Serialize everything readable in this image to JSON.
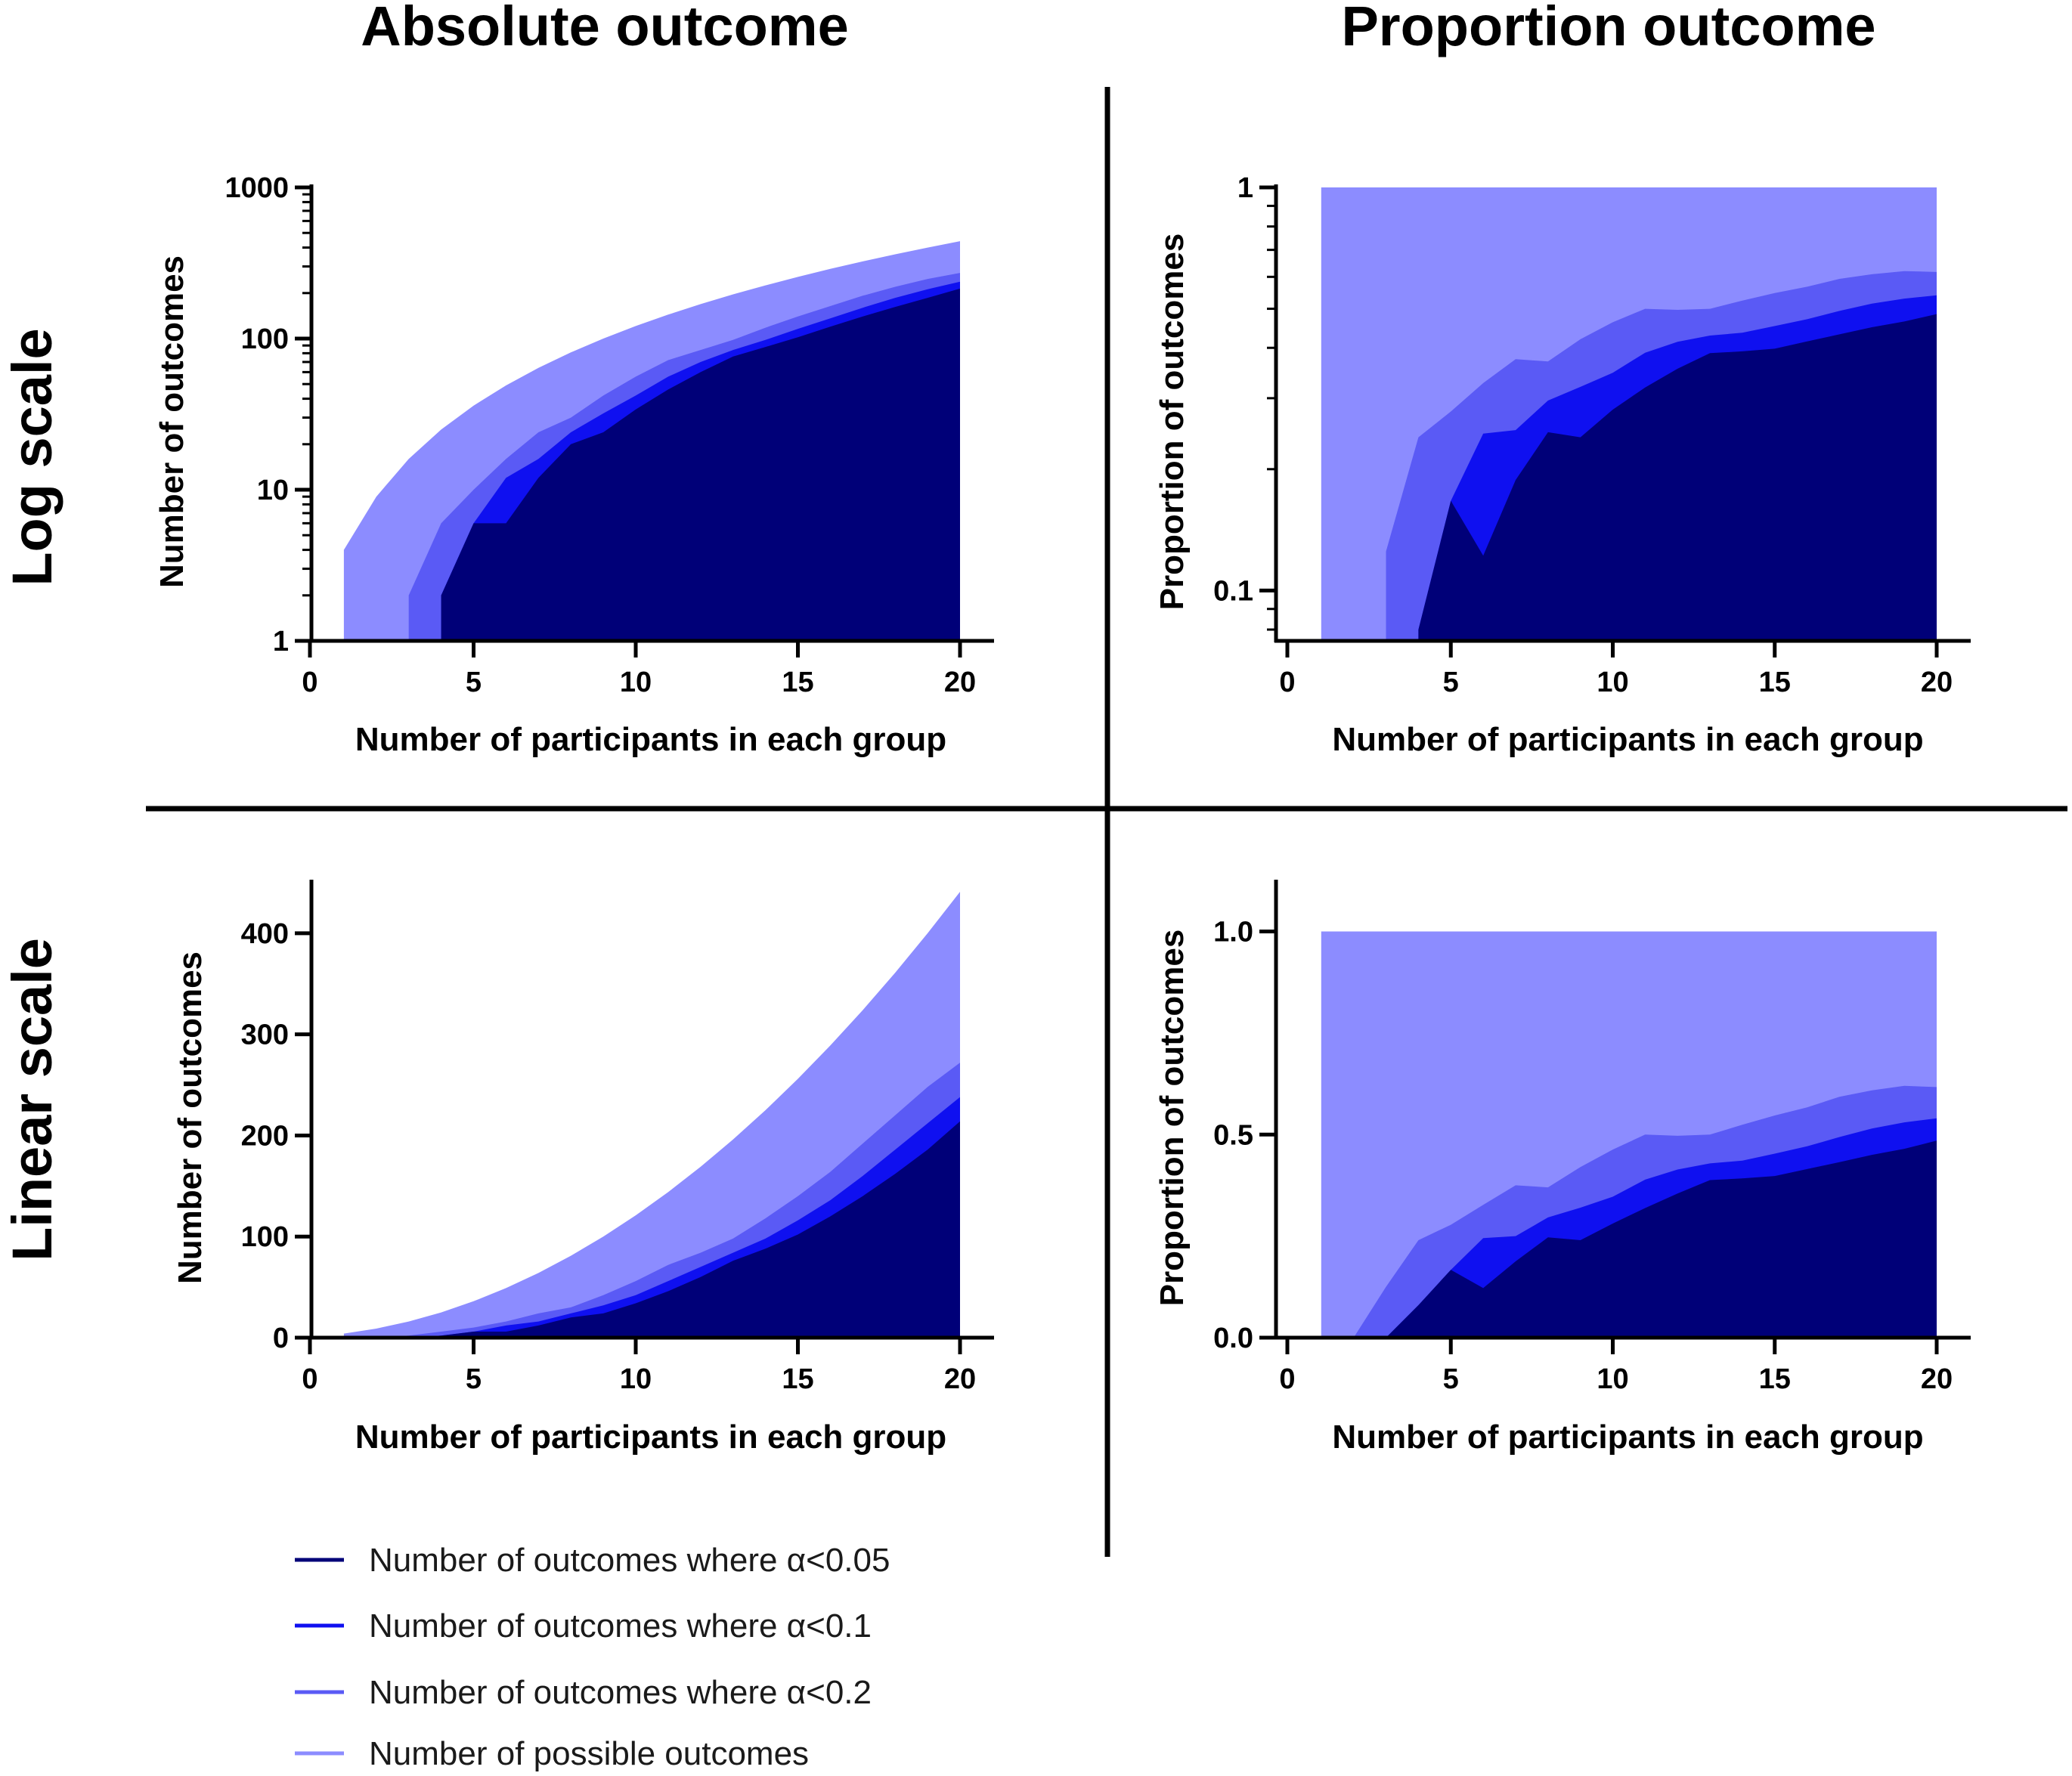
{
  "column_titles": {
    "left": "Absolute outcome",
    "right": "Proportion outcome"
  },
  "row_titles": {
    "top": "Log scale",
    "bottom": "Linear scale"
  },
  "colors": {
    "possible": "#8c8cff",
    "alpha02": "#5a5af5",
    "alpha01": "#0f10f0",
    "alpha005": "#000078",
    "axis": "#000000"
  },
  "legend": [
    {
      "label": "Number of outcomes where α<0.05",
      "color": "#000078"
    },
    {
      "label": "Number of outcomes where α<0.1",
      "color": "#0f10f0"
    },
    {
      "label": "Number of outcomes where α<0.2",
      "color": "#5a5af5"
    },
    {
      "label": "Number of possible outcomes",
      "color": "#8c8cff"
    }
  ],
  "chart_data": [
    {
      "id": "abs-log",
      "type": "area",
      "scale": "log",
      "xlabel": "Number of participants in each group",
      "ylabel": "Number of outcomes",
      "xlim": [
        0,
        20
      ],
      "ylim": [
        1,
        1000
      ],
      "xticks": [
        "0",
        "5",
        "10",
        "15",
        "20"
      ],
      "yticks": [
        {
          "v": 1,
          "t": "1"
        },
        {
          "v": 10,
          "t": "10"
        },
        {
          "v": 100,
          "t": "100"
        },
        {
          "v": 1000,
          "t": "1000"
        }
      ],
      "series": [
        {
          "name": "Number of possible outcomes",
          "x": [
            1,
            2,
            3,
            4,
            5,
            6,
            7,
            8,
            9,
            10,
            11,
            12,
            13,
            14,
            15,
            16,
            17,
            18,
            19,
            20
          ],
          "values": [
            4,
            9,
            16,
            25,
            36,
            49,
            64,
            81,
            100,
            121,
            144,
            169,
            196,
            225,
            256,
            289,
            324,
            361,
            400,
            441
          ]
        },
        {
          "name": "Number of outcomes where α<0.2",
          "x": [
            3,
            4,
            5,
            6,
            7,
            8,
            9,
            10,
            11,
            12,
            13,
            14,
            15,
            16,
            17,
            18,
            19,
            20
          ],
          "values": [
            2,
            6,
            10,
            16,
            24,
            30,
            42,
            56,
            72,
            84,
            98,
            118,
            140,
            164,
            192,
            220,
            248,
            272
          ]
        },
        {
          "name": "Number of outcomes where α<0.1",
          "x": [
            4,
            5,
            6,
            7,
            8,
            9,
            10,
            11,
            12,
            13,
            14,
            15,
            16,
            17,
            18,
            19,
            20
          ],
          "values": [
            2,
            6,
            12,
            16,
            24,
            32,
            42,
            56,
            70,
            84,
            98,
            116,
            136,
            160,
            186,
            212,
            238
          ]
        },
        {
          "name": "Number of outcomes where α<0.05",
          "x": [
            4,
            5,
            6,
            7,
            8,
            9,
            10,
            11,
            12,
            13,
            14,
            15,
            16,
            17,
            18,
            19,
            20
          ],
          "values": [
            2,
            6,
            6,
            12,
            20,
            24,
            34,
            46,
            60,
            76,
            88,
            102,
            120,
            140,
            162,
            186,
            214
          ]
        }
      ]
    },
    {
      "id": "prop-log",
      "type": "area",
      "scale": "log",
      "xlabel": "Number of participants in each group",
      "ylabel": "Proportion of outcomes",
      "xlim": [
        0,
        20
      ],
      "ylim": [
        0.075,
        1
      ],
      "xticks": [
        "0",
        "5",
        "10",
        "15",
        "20"
      ],
      "yticks": [
        {
          "v": 0.1,
          "t": "0.1"
        },
        {
          "v": 1,
          "t": "1"
        }
      ],
      "series": [
        {
          "name": "Number of possible outcomes",
          "x": [
            1,
            20
          ],
          "values": [
            1,
            1
          ]
        },
        {
          "name": "Number of outcomes where α<0.2",
          "x": [
            3,
            4,
            5,
            6,
            7,
            8,
            9,
            10,
            11,
            12,
            13,
            14,
            15,
            16,
            17,
            18,
            19,
            20
          ],
          "values": [
            0.125,
            0.24,
            0.278,
            0.327,
            0.375,
            0.37,
            0.42,
            0.463,
            0.5,
            0.497,
            0.5,
            0.524,
            0.547,
            0.567,
            0.593,
            0.609,
            0.62,
            0.617
          ]
        },
        {
          "name": "Number of outcomes where α<0.1",
          "x": [
            4,
            5,
            6,
            7,
            8,
            9,
            10,
            11,
            12,
            13,
            14,
            15,
            16,
            17,
            18,
            19,
            20
          ],
          "values": [
            0.08,
            0.167,
            0.245,
            0.25,
            0.296,
            0.32,
            0.347,
            0.389,
            0.414,
            0.429,
            0.436,
            0.453,
            0.471,
            0.494,
            0.515,
            0.53,
            0.54
          ]
        },
        {
          "name": "Number of outcomes where α<0.05",
          "x": [
            4,
            5,
            6,
            7,
            8,
            9,
            10,
            11,
            12,
            13,
            14,
            15,
            16,
            17,
            18,
            19,
            20
          ],
          "values": [
            0.08,
            0.167,
            0.122,
            0.188,
            0.247,
            0.24,
            0.281,
            0.319,
            0.355,
            0.388,
            0.392,
            0.398,
            0.415,
            0.432,
            0.45,
            0.465,
            0.485
          ]
        }
      ]
    },
    {
      "id": "abs-lin",
      "type": "area",
      "scale": "linear",
      "xlabel": "Number of participants in each group",
      "ylabel": "Number of outcomes",
      "xlim": [
        0,
        20
      ],
      "ylim": [
        0,
        450
      ],
      "xticks": [
        "0",
        "5",
        "10",
        "15",
        "20"
      ],
      "yticks": [
        {
          "v": 0,
          "t": "0"
        },
        {
          "v": 100,
          "t": "100"
        },
        {
          "v": 200,
          "t": "200"
        },
        {
          "v": 300,
          "t": "300"
        },
        {
          "v": 400,
          "t": "400"
        }
      ],
      "series": [
        {
          "name": "Number of possible outcomes",
          "x": [
            1,
            2,
            3,
            4,
            5,
            6,
            7,
            8,
            9,
            10,
            11,
            12,
            13,
            14,
            15,
            16,
            17,
            18,
            19,
            20
          ],
          "values": [
            4,
            9,
            16,
            25,
            36,
            49,
            64,
            81,
            100,
            121,
            144,
            169,
            196,
            225,
            256,
            289,
            324,
            361,
            400,
            441
          ]
        },
        {
          "name": "Number of outcomes where α<0.2",
          "x": [
            1,
            2,
            3,
            4,
            5,
            6,
            7,
            8,
            9,
            10,
            11,
            12,
            13,
            14,
            15,
            16,
            17,
            18,
            19,
            20
          ],
          "values": [
            0,
            0,
            2,
            6,
            10,
            16,
            24,
            30,
            42,
            56,
            72,
            84,
            98,
            118,
            140,
            164,
            192,
            220,
            248,
            272
          ]
        },
        {
          "name": "Number of outcomes where α<0.1",
          "x": [
            1,
            2,
            3,
            4,
            5,
            6,
            7,
            8,
            9,
            10,
            11,
            12,
            13,
            14,
            15,
            16,
            17,
            18,
            19,
            20
          ],
          "values": [
            0,
            0,
            0,
            2,
            6,
            12,
            16,
            24,
            32,
            42,
            56,
            70,
            84,
            98,
            116,
            136,
            160,
            186,
            212,
            238
          ]
        },
        {
          "name": "Number of outcomes where α<0.05",
          "x": [
            1,
            2,
            3,
            4,
            5,
            6,
            7,
            8,
            9,
            10,
            11,
            12,
            13,
            14,
            15,
            16,
            17,
            18,
            19,
            20
          ],
          "values": [
            0,
            0,
            0,
            2,
            6,
            6,
            12,
            20,
            24,
            34,
            46,
            60,
            76,
            88,
            102,
            120,
            140,
            162,
            186,
            214
          ]
        }
      ]
    },
    {
      "id": "prop-lin",
      "type": "area",
      "scale": "linear",
      "xlabel": "Number of participants in each group",
      "ylabel": "Proportion of outcomes",
      "xlim": [
        0,
        20
      ],
      "ylim": [
        0,
        1.12
      ],
      "xticks": [
        "0",
        "5",
        "10",
        "15",
        "20"
      ],
      "yticks": [
        {
          "v": 0,
          "t": "0.0"
        },
        {
          "v": 0.5,
          "t": "0.5"
        },
        {
          "v": 1,
          "t": "1.0"
        }
      ],
      "series": [
        {
          "name": "Number of possible outcomes",
          "x": [
            1,
            20
          ],
          "values": [
            1,
            1
          ]
        },
        {
          "name": "Number of outcomes where α<0.2",
          "x": [
            1,
            2,
            3,
            4,
            5,
            6,
            7,
            8,
            9,
            10,
            11,
            12,
            13,
            14,
            15,
            16,
            17,
            18,
            19,
            20
          ],
          "values": [
            0,
            0,
            0.125,
            0.24,
            0.278,
            0.327,
            0.375,
            0.37,
            0.42,
            0.463,
            0.5,
            0.497,
            0.5,
            0.524,
            0.547,
            0.567,
            0.593,
            0.609,
            0.62,
            0.617
          ]
        },
        {
          "name": "Number of outcomes where α<0.1",
          "x": [
            1,
            2,
            3,
            4,
            5,
            6,
            7,
            8,
            9,
            10,
            11,
            12,
            13,
            14,
            15,
            16,
            17,
            18,
            19,
            20
          ],
          "values": [
            0,
            0,
            0,
            0.08,
            0.167,
            0.245,
            0.25,
            0.296,
            0.32,
            0.347,
            0.389,
            0.414,
            0.429,
            0.436,
            0.453,
            0.471,
            0.494,
            0.515,
            0.53,
            0.54
          ]
        },
        {
          "name": "Number of outcomes where α<0.05",
          "x": [
            1,
            2,
            3,
            4,
            5,
            6,
            7,
            8,
            9,
            10,
            11,
            12,
            13,
            14,
            15,
            16,
            17,
            18,
            19,
            20
          ],
          "values": [
            0,
            0,
            0,
            0.08,
            0.167,
            0.122,
            0.188,
            0.247,
            0.24,
            0.281,
            0.319,
            0.355,
            0.388,
            0.392,
            0.398,
            0.415,
            0.432,
            0.45,
            0.465,
            0.485
          ]
        }
      ]
    }
  ]
}
